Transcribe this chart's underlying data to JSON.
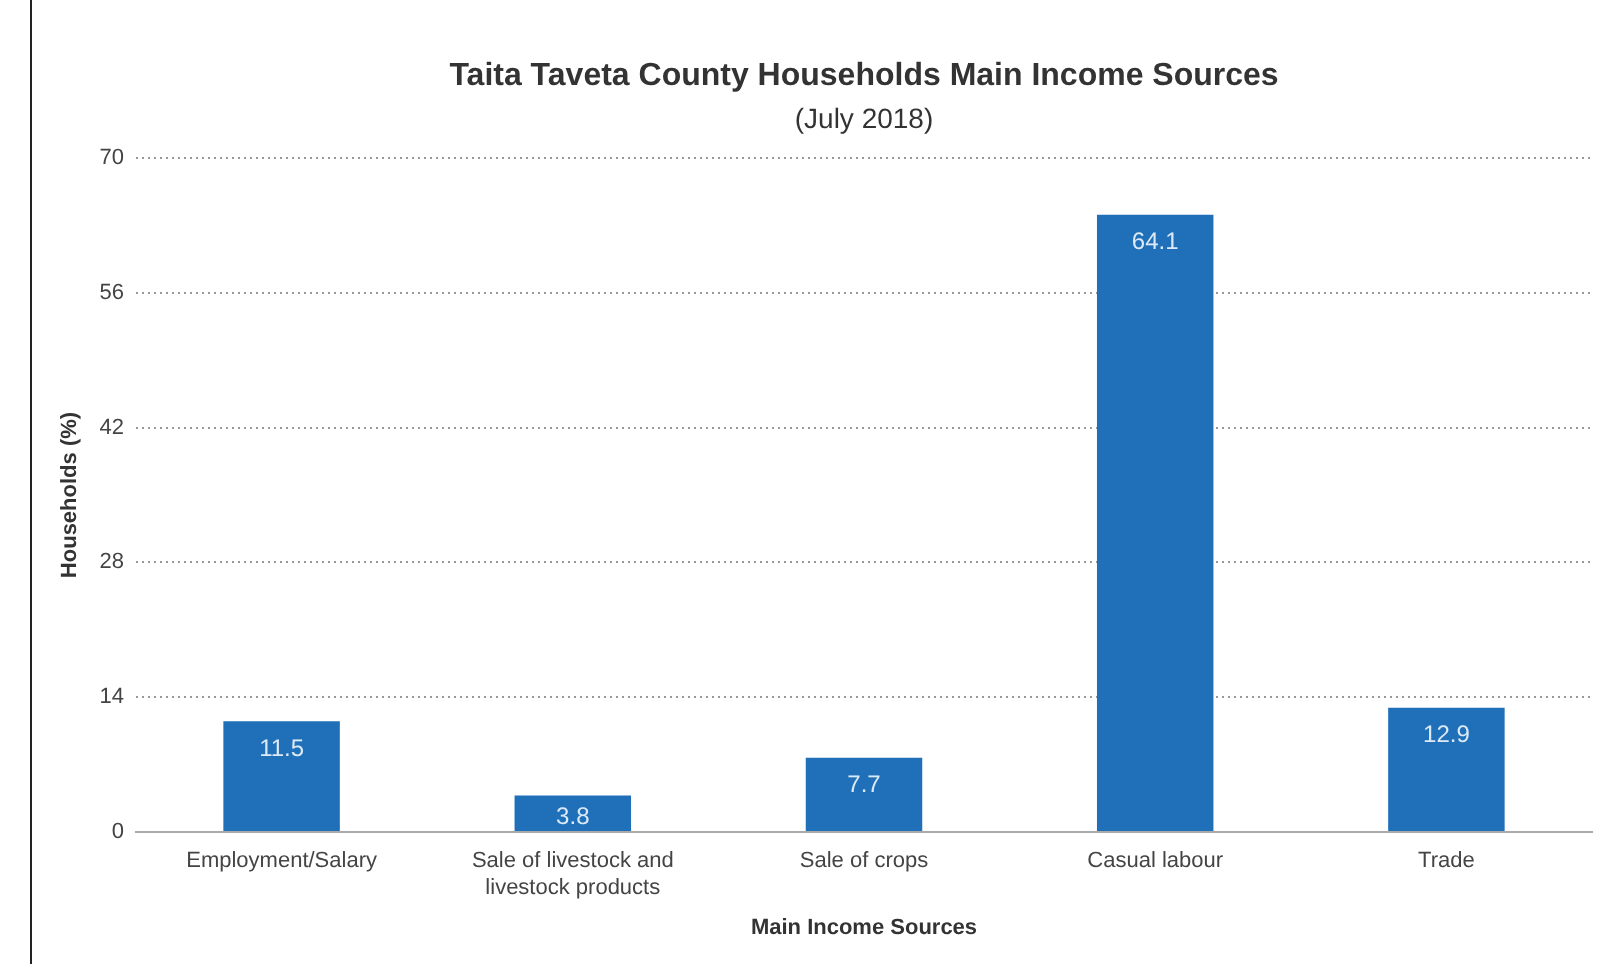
{
  "chart_data": {
    "type": "bar",
    "title": "Taita Taveta County Households Main Income Sources",
    "subtitle": "(July 2018)",
    "xlabel": "Main Income Sources",
    "ylabel": "Households (%)",
    "categories": [
      "Employment/Salary",
      "Sale of livestock and livestock products",
      "Sale of crops",
      "Casual labour",
      "Trade"
    ],
    "values": [
      11.5,
      3.8,
      7.7,
      64.1,
      12.9
    ],
    "color": "#1f70b8",
    "ylim": [
      0,
      70
    ],
    "yticks": [
      0,
      14,
      28,
      42,
      56,
      70
    ],
    "grid": "y",
    "data_labels": true
  }
}
